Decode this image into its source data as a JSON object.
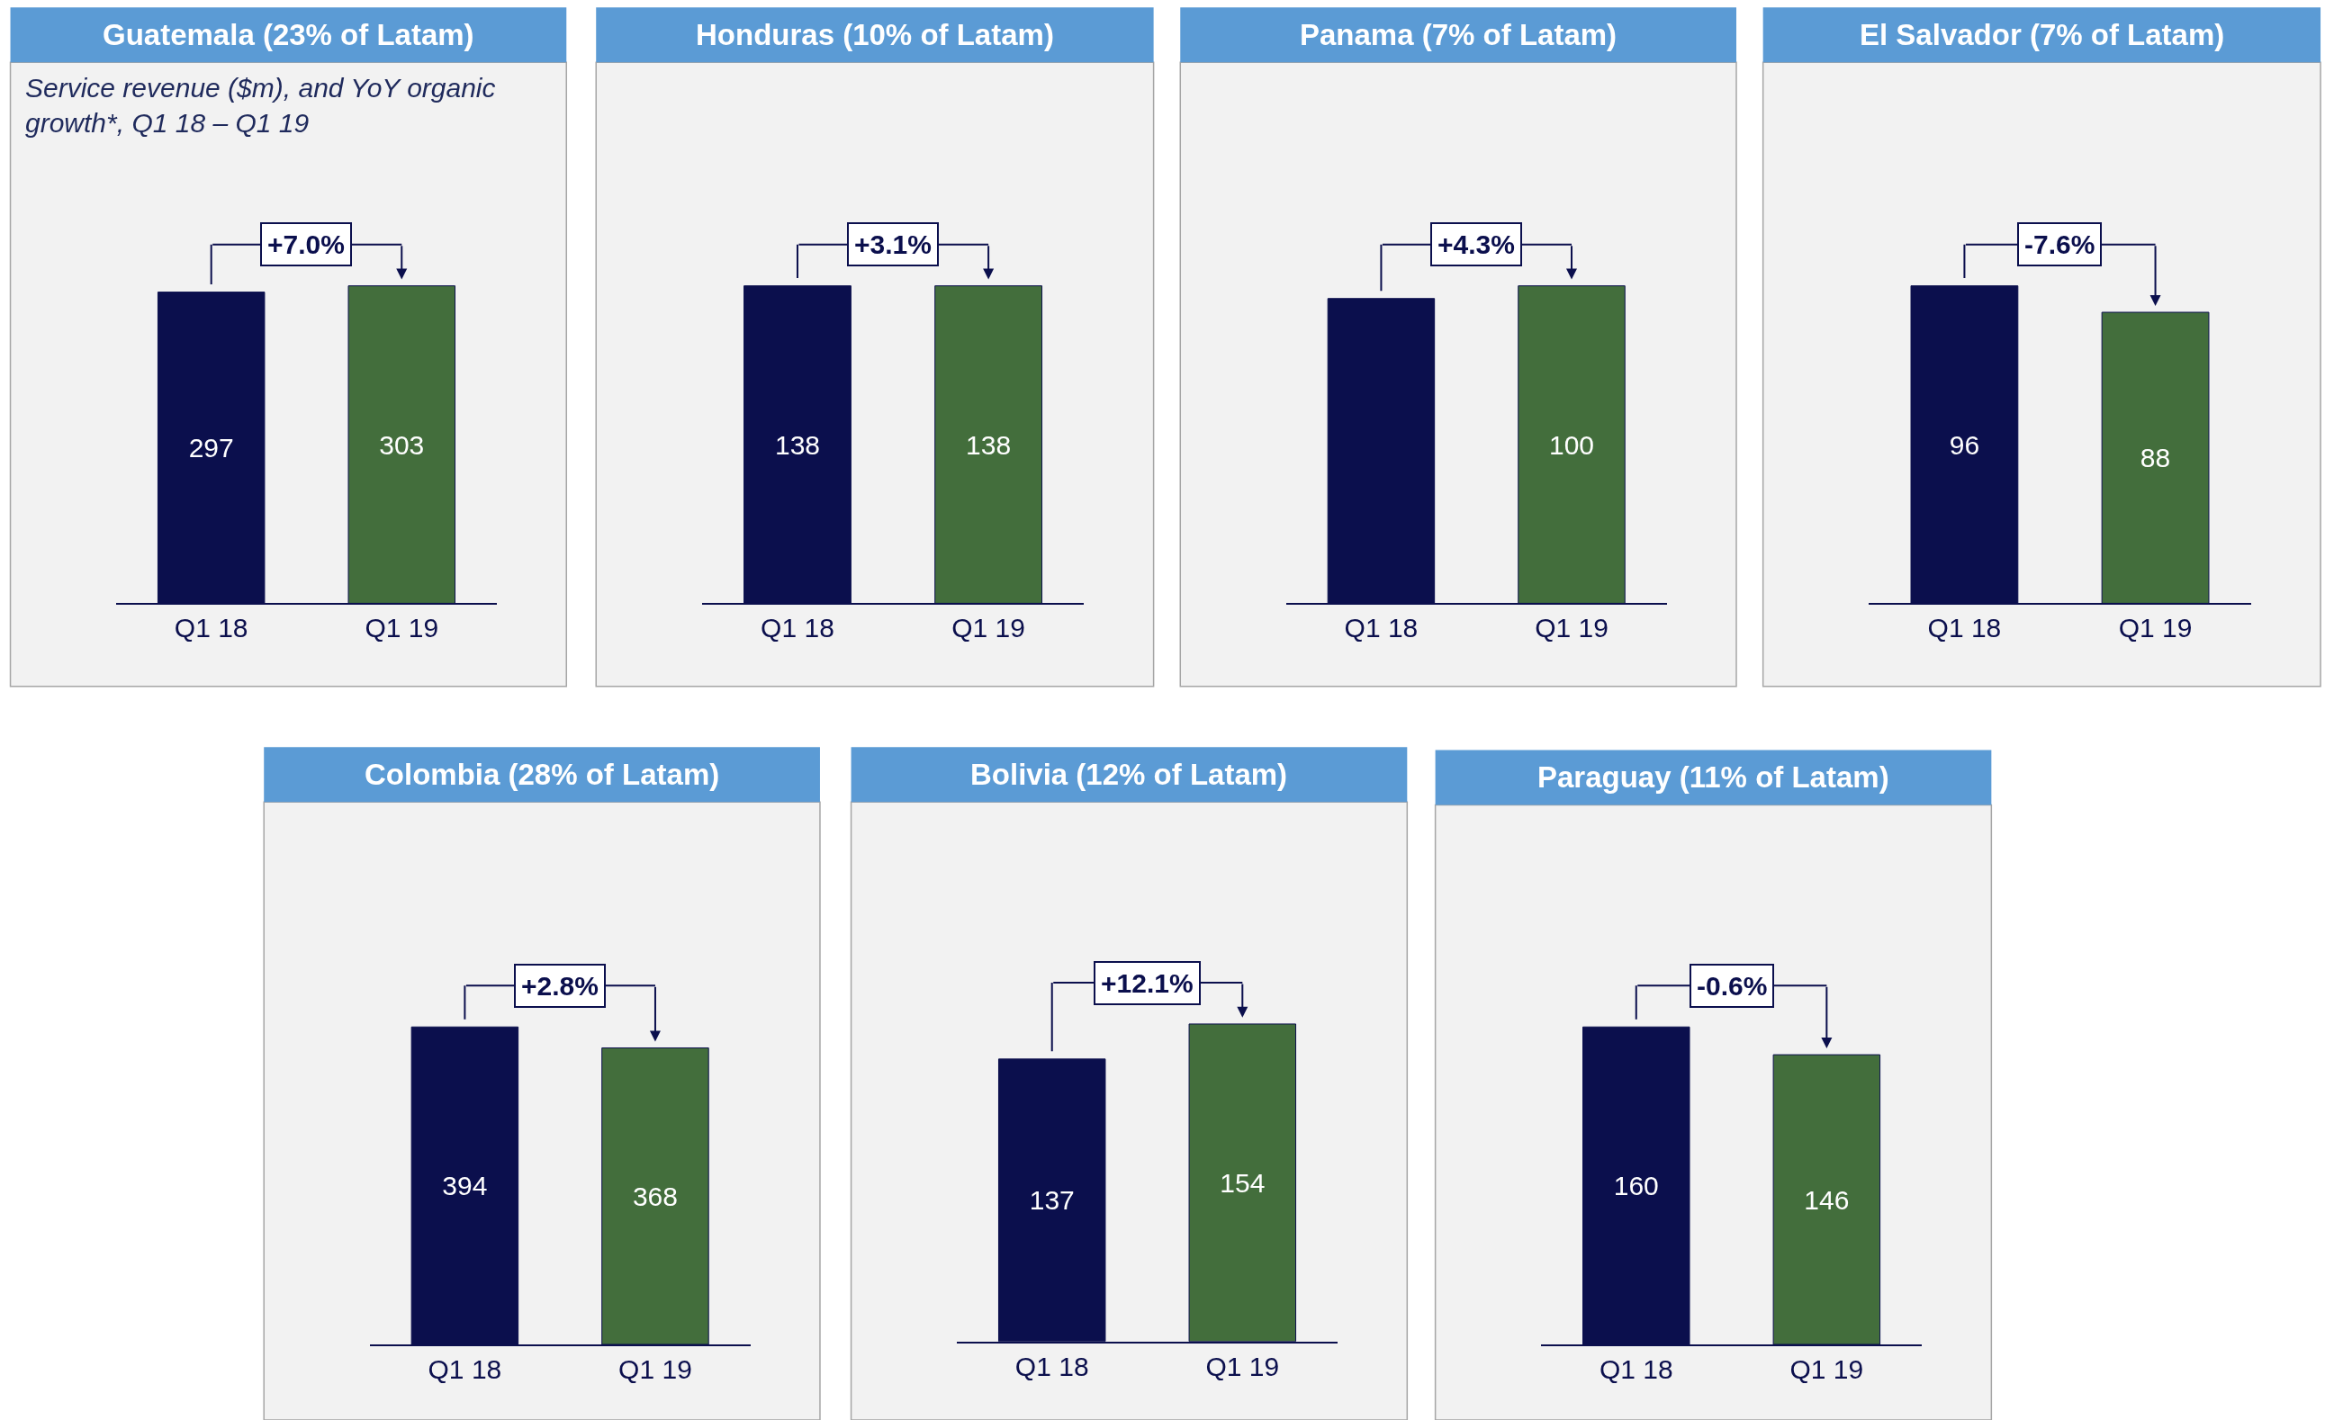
{
  "chart_data": [
    {
      "type": "bar",
      "title": "Guatemala (23% of Latam)",
      "subtitle": "Service revenue ($m), and YoY organic growth*, Q1 18 – Q1 19",
      "categories": [
        "Q1 18",
        "Q1 19"
      ],
      "values": [
        297,
        303
      ],
      "colors": [
        "#0b0f4d",
        "#436e3c"
      ],
      "data_labels": true,
      "annotations": [
        "+7.0%"
      ]
    },
    {
      "type": "bar",
      "title": "Honduras (10% of Latam)",
      "categories": [
        "Q1 18",
        "Q1 19"
      ],
      "values": [
        138,
        138
      ],
      "colors": [
        "#0b0f4d",
        "#436e3c"
      ],
      "data_labels": true,
      "annotations": [
        "+3.1%"
      ]
    },
    {
      "type": "bar",
      "title": "Panama (7% of Latam)",
      "categories": [
        "Q1 18",
        "Q1 19"
      ],
      "values": [
        96,
        100
      ],
      "colors": [
        "#0b0f4d",
        "#436e3c"
      ],
      "value_labels": [
        null,
        "100"
      ],
      "annotations": [
        "+4.3%"
      ]
    },
    {
      "type": "bar",
      "title": "El Salvador (7% of Latam)",
      "categories": [
        "Q1 18",
        "Q1 19"
      ],
      "values": [
        96,
        88
      ],
      "colors": [
        "#0b0f4d",
        "#436e3c"
      ],
      "data_labels": true,
      "annotations": [
        "-7.6%"
      ]
    },
    {
      "type": "bar",
      "title": "Colombia (28% of Latam)",
      "categories": [
        "Q1 18",
        "Q1 19"
      ],
      "values": [
        394,
        368
      ],
      "colors": [
        "#0b0f4d",
        "#436e3c"
      ],
      "data_labels": true,
      "annotations": [
        "+2.8%"
      ]
    },
    {
      "type": "bar",
      "title": "Bolivia (12% of Latam)",
      "categories": [
        "Q1 18",
        "Q1 19"
      ],
      "values": [
        137,
        154
      ],
      "colors": [
        "#0b0f4d",
        "#436e3c"
      ],
      "data_labels": true,
      "annotations": [
        "+12.1%"
      ]
    },
    {
      "type": "bar",
      "title": "Paraguay (11% of Latam)",
      "categories": [
        "Q1 18",
        "Q1 19"
      ],
      "values": [
        160,
        146
      ],
      "colors": [
        "#0b0f4d",
        "#436e3c"
      ],
      "data_labels": true,
      "annotations": [
        "-0.6%"
      ]
    }
  ]
}
